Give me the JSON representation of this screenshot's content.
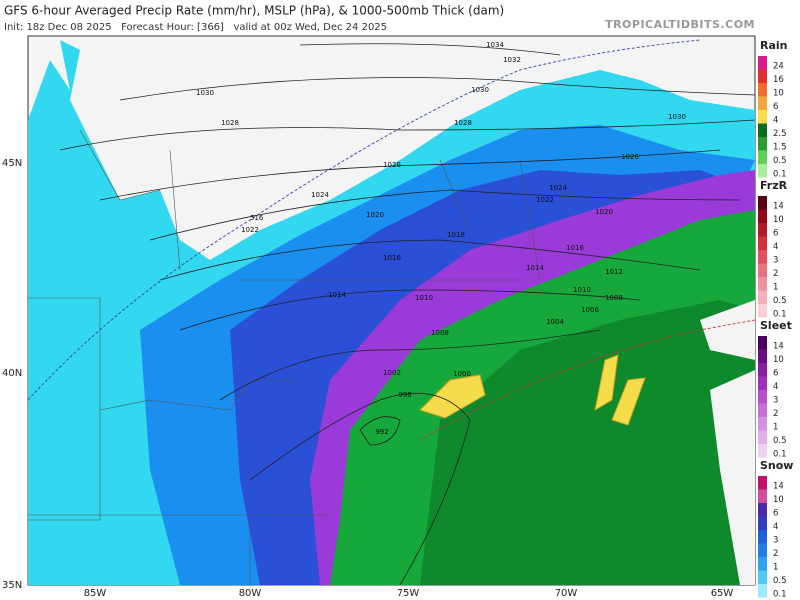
{
  "header": {
    "title": "GFS 6-hour Averaged Precip Rate (mm/hr), MSLP (hPa), & 1000-500mb Thick (dam)",
    "subtitle": "Init: 18z Dec 08 2025   Forecast Hour: [366]   valid at 00z Wed, Dec 24 2025",
    "source": "TROPICALTIDBITS.COM"
  },
  "map": {
    "lat_labels": [
      "45N",
      "40N",
      "35N"
    ],
    "lon_labels": [
      "85W",
      "80W",
      "75W",
      "70W",
      "65W"
    ],
    "isobar_labels": [
      "1034",
      "1032",
      "1030",
      "1030",
      "1028",
      "1028",
      "1030",
      "1026",
      "1026",
      "1024",
      "1024",
      "1022",
      "1022",
      "1020",
      "1020",
      "1018",
      "1016",
      "1016",
      "1014",
      "1014",
      "1012",
      "1010",
      "1010",
      "1008",
      "1008",
      "1006",
      "1004",
      "1002",
      "1000",
      "998",
      "992"
    ],
    "thickness_labels": [
      "516"
    ]
  },
  "legends": [
    {
      "title": "Rain",
      "labels": [
        "24",
        "16",
        "10",
        "6",
        "4",
        "2.5",
        "1.5",
        "0.5",
        "0.1"
      ]
    },
    {
      "title": "FrzR",
      "labels": [
        "14",
        "10",
        "6",
        "4",
        "3",
        "2",
        "1",
        "0.5",
        "0.1"
      ]
    },
    {
      "title": "Sleet",
      "labels": [
        "14",
        "10",
        "6",
        "4",
        "3",
        "2",
        "1",
        "0.5",
        "0.1"
      ]
    },
    {
      "title": "Snow",
      "labels": [
        "14",
        "10",
        "6",
        "4",
        "3",
        "2",
        "1",
        "0.5",
        "0.1"
      ]
    }
  ]
}
